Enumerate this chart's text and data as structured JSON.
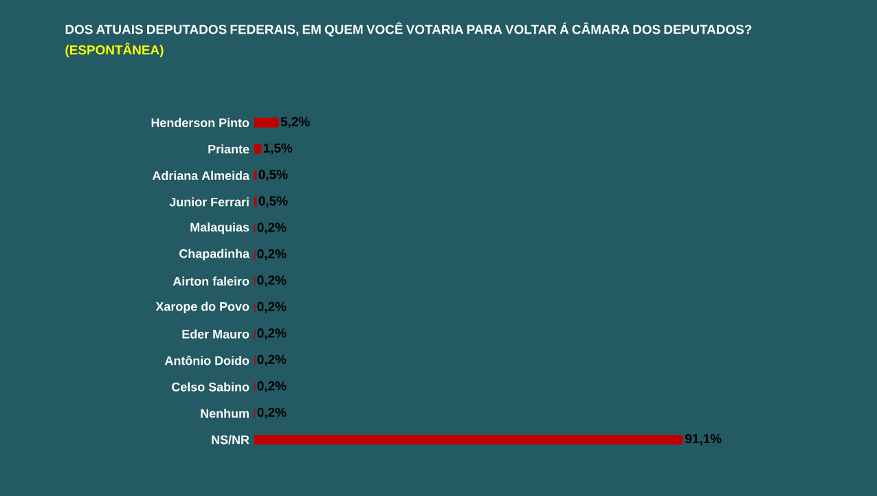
{
  "chart_data": {
    "type": "bar",
    "orientation": "horizontal",
    "title": "DOS ATUAIS DEPUTADOS FEDERAIS, EM QUEM VOCÊ VOTARIA PARA VOLTAR Á CÂMARA DOS DEPUTADOS?",
    "subtitle": "(ESPONTÂNEA)",
    "categories": [
      "Henderson Pinto",
      "Priante",
      "Adriana Almeida",
      "Junior Ferrari",
      "Malaquias",
      "Chapadinha",
      "Airton faleiro",
      "Xarope do Povo",
      "Eder Mauro",
      "Antônio Doido",
      "Celso Sabino",
      "Nenhum",
      "NS/NR"
    ],
    "values": [
      5.2,
      1.5,
      0.5,
      0.5,
      0.2,
      0.2,
      0.2,
      0.2,
      0.2,
      0.2,
      0.2,
      0.2,
      91.1
    ],
    "value_labels": [
      "5,2%",
      "1,5%",
      "0,5%",
      "0,5%",
      "0,2%",
      "0,2%",
      "0,2%",
      "0,2%",
      "0,2%",
      "0,2%",
      "0,2%",
      "0,2%",
      "91,1%"
    ],
    "color": "#c00000",
    "tick_labels": "y"
  }
}
